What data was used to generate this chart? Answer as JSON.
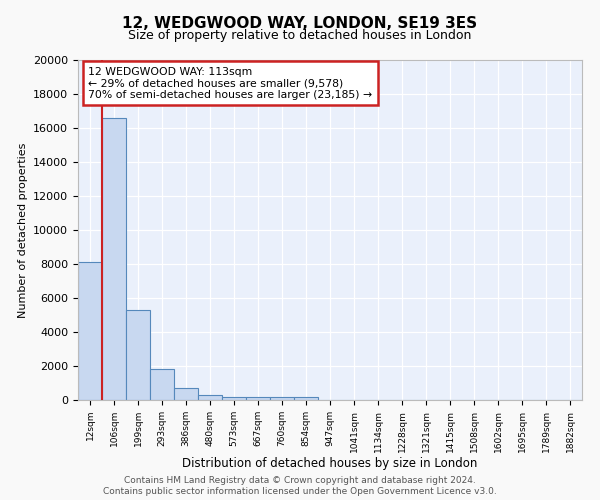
{
  "title": "12, WEDGWOOD WAY, LONDON, SE19 3ES",
  "subtitle": "Size of property relative to detached houses in London",
  "xlabel": "Distribution of detached houses by size in London",
  "ylabel": "Number of detached properties",
  "bin_labels": [
    "12sqm",
    "106sqm",
    "199sqm",
    "293sqm",
    "386sqm",
    "480sqm",
    "573sqm",
    "667sqm",
    "760sqm",
    "854sqm",
    "947sqm",
    "1041sqm",
    "1134sqm",
    "1228sqm",
    "1321sqm",
    "1415sqm",
    "1508sqm",
    "1602sqm",
    "1695sqm",
    "1789sqm",
    "1882sqm"
  ],
  "bar_heights": [
    8100,
    16600,
    5300,
    1850,
    700,
    300,
    200,
    175,
    175,
    150,
    0,
    0,
    0,
    0,
    0,
    0,
    0,
    0,
    0,
    0,
    0
  ],
  "bar_color": "#c8d8f0",
  "bar_edge_color": "#5588bb",
  "vline_color": "#cc2222",
  "annotation_title": "12 WEDGWOOD WAY: 113sqm",
  "annotation_line1": "← 29% of detached houses are smaller (9,578)",
  "annotation_line2": "70% of semi-detached houses are larger (23,185) →",
  "annotation_box_color": "#ffffff",
  "annotation_box_edge": "#cc2222",
  "ylim": [
    0,
    20000
  ],
  "yticks": [
    0,
    2000,
    4000,
    6000,
    8000,
    10000,
    12000,
    14000,
    16000,
    18000,
    20000
  ],
  "footer_line1": "Contains HM Land Registry data © Crown copyright and database right 2024.",
  "footer_line2": "Contains public sector information licensed under the Open Government Licence v3.0.",
  "plot_bg_color": "#eaf0fb"
}
